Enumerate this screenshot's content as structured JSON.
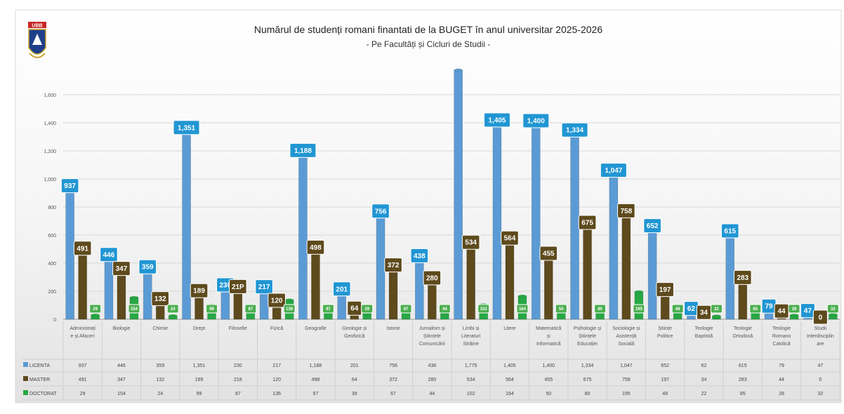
{
  "chart_data": {
    "type": "bar",
    "title": "Numărul de studenți romani finantati de la BUGET în anul universitar 2025-2026",
    "subtitle": "- Pe Facultăți și Cicluri de Studii -",
    "ylim": [
      0,
      1800
    ],
    "yticks": [
      "0",
      "200",
      "400",
      "600",
      "800",
      "1,000",
      "1,200",
      "1,400",
      "1,600"
    ],
    "categories": [
      [
        "Administrați",
        "e și Afaceri"
      ],
      [
        "Biologie"
      ],
      [
        "Chimie"
      ],
      [
        "Drept"
      ],
      [
        "Filosofie"
      ],
      [
        "Fizică"
      ],
      [
        "Geografie"
      ],
      [
        "Geologie și",
        "Geofizică"
      ],
      [
        "Istorie"
      ],
      [
        "Jurnalism și",
        "Științele",
        "Comunicării"
      ],
      [
        "Limbi și",
        "Literaturi",
        "Străine"
      ],
      [
        "Litere"
      ],
      [
        "Matematică",
        "și",
        "Informatică"
      ],
      [
        "Psihologie și",
        "Științele",
        "Educației"
      ],
      [
        "Sociologie și",
        "Asistență",
        "Socială"
      ],
      [
        "Științe",
        "Politice"
      ],
      [
        "Teologie",
        "Baptistă"
      ],
      [
        "Teologie",
        "Ortodoxă"
      ],
      [
        "Teologie",
        "Romano",
        "Catolică"
      ],
      [
        "Studii",
        "Interdisciplin",
        "are"
      ]
    ],
    "series": [
      {
        "name": "LICENTA",
        "color": "#5b9bd5",
        "label_color": "#2196d3",
        "values": [
          937,
          446,
          359,
          1351,
          230,
          217,
          1188,
          201,
          756,
          438,
          1775,
          1405,
          1400,
          1334,
          1047,
          652,
          62,
          615,
          79,
          47
        ],
        "labels": [
          "937",
          "446",
          "359",
          "1,351",
          "230",
          "217",
          "1,188",
          "201",
          "756",
          "438",
          "",
          "1,405",
          "1,400",
          "1,334",
          "1,047",
          "652",
          "62",
          "615",
          "79",
          "47"
        ],
        "table": [
          "937",
          "446",
          "359",
          "1,351",
          "230",
          "217",
          "1,188",
          "201",
          "756",
          "438",
          "1,775",
          "1,405",
          "1,400",
          "1,334",
          "1,047",
          "652",
          "62",
          "615",
          "79",
          "47"
        ]
      },
      {
        "name": "MASTER",
        "color": "#5e4a1c",
        "label_color": "#5e4a1c",
        "values": [
          491,
          347,
          132,
          189,
          218,
          120,
          498,
          64,
          372,
          280,
          534,
          564,
          455,
          675,
          758,
          197,
          34,
          283,
          44,
          0
        ],
        "labels": [
          "491",
          "347",
          "132",
          "189",
          "21P",
          "120",
          "498",
          "64",
          "372",
          "280",
          "534",
          "564",
          "455",
          "675",
          "758",
          "197",
          "34",
          "283",
          "44",
          "0"
        ],
        "table": [
          "491",
          "347",
          "132",
          "189",
          "218",
          "120",
          "498",
          "64",
          "372",
          "280",
          "534",
          "564",
          "455",
          "675",
          "758",
          "197",
          "34",
          "283",
          "44",
          "0"
        ]
      },
      {
        "name": "DOCTORAT",
        "color": "#27a844",
        "label_color": "#4caf50",
        "values": [
          29,
          154,
          24,
          99,
          87,
          136,
          97,
          39,
          67,
          44,
          102,
          164,
          50,
          80,
          195,
          48,
          22,
          85,
          28,
          32
        ],
        "labels": [
          "29",
          "154",
          "24",
          "99",
          "87",
          "136",
          "97",
          "39",
          "67",
          "44",
          "102",
          "164",
          "50",
          "80",
          "195",
          "48",
          "22",
          "85",
          "28",
          "32"
        ],
        "table": [
          "29",
          "154",
          "24",
          "99",
          "87",
          "136",
          "97",
          "39",
          "67",
          "44",
          "102",
          "164",
          "50",
          "80",
          "195",
          "48",
          "22",
          "85",
          "28",
          "32"
        ]
      }
    ],
    "legend": "data-table",
    "grid": true
  },
  "logo": {
    "letters": "UBB"
  }
}
